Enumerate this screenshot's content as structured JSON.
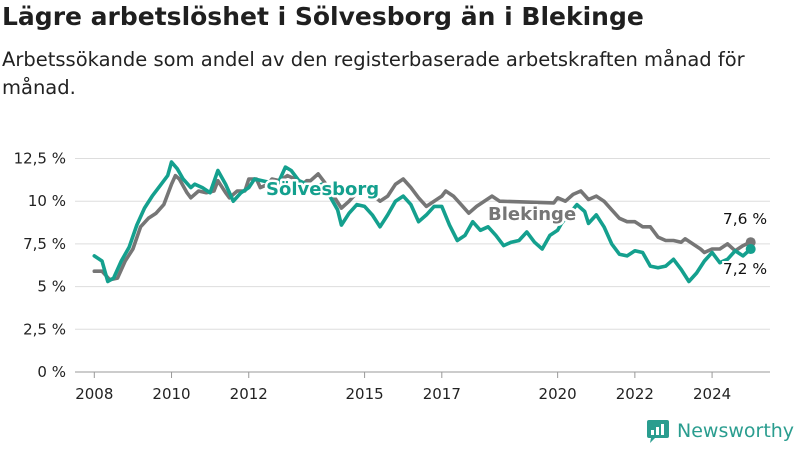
{
  "header": {
    "title": "Lägre arbetslöshet i Sölvesborg än i Blekinge",
    "subtitle": "Arbetssökande som andel av den registerbaserade arbetskraften månad för månad."
  },
  "brand": {
    "name": "Newsworthy",
    "color": "#2a9d8f",
    "icon": "newsworthy-logo-icon"
  },
  "chart_data": {
    "type": "line",
    "title": "Lägre arbetslöshet i Sölvesborg än i Blekinge",
    "subtitle": "Arbetssökande som andel av den registerbaserade arbetskraften månad för månad.",
    "xlabel": "",
    "ylabel": "",
    "xlim": [
      2007.5,
      2025.5
    ],
    "ylim": [
      0,
      13
    ],
    "grid": true,
    "legend": "inline labels",
    "yticks": [
      {
        "v": 0,
        "label": "0 %"
      },
      {
        "v": 2.5,
        "label": "2,5 %"
      },
      {
        "v": 5,
        "label": "5 %"
      },
      {
        "v": 7.5,
        "label": "7,5 %"
      },
      {
        "v": 10,
        "label": "10 %"
      },
      {
        "v": 12.5,
        "label": "12,5 %"
      }
    ],
    "xticks": [
      {
        "v": 2008,
        "label": "2008"
      },
      {
        "v": 2010,
        "label": "2010"
      },
      {
        "v": 2012,
        "label": "2012"
      },
      {
        "v": 2015,
        "label": "2015"
      },
      {
        "v": 2017,
        "label": "2017"
      },
      {
        "v": 2020,
        "label": "2020"
      },
      {
        "v": 2022,
        "label": "2022"
      },
      {
        "v": 2024,
        "label": "2024"
      }
    ],
    "series": [
      {
        "name": "Blekinge",
        "color": "#767676",
        "end_label": "7,6 %",
        "points": [
          [
            2008.0,
            5.9
          ],
          [
            2008.2,
            5.9
          ],
          [
            2008.4,
            5.4
          ],
          [
            2008.6,
            5.5
          ],
          [
            2008.8,
            6.5
          ],
          [
            2009.0,
            7.2
          ],
          [
            2009.2,
            8.5
          ],
          [
            2009.4,
            9.0
          ],
          [
            2009.6,
            9.3
          ],
          [
            2009.8,
            9.8
          ],
          [
            2010.0,
            11.0
          ],
          [
            2010.1,
            11.5
          ],
          [
            2010.2,
            11.3
          ],
          [
            2010.4,
            10.5
          ],
          [
            2010.5,
            10.2
          ],
          [
            2010.7,
            10.6
          ],
          [
            2010.9,
            10.5
          ],
          [
            2011.1,
            10.6
          ],
          [
            2011.2,
            11.2
          ],
          [
            2011.4,
            10.5
          ],
          [
            2011.5,
            10.2
          ],
          [
            2011.7,
            10.6
          ],
          [
            2011.9,
            10.6
          ],
          [
            2012.0,
            11.3
          ],
          [
            2012.2,
            11.3
          ],
          [
            2012.3,
            10.8
          ],
          [
            2012.5,
            11.0
          ],
          [
            2012.6,
            11.3
          ],
          [
            2012.8,
            11.2
          ],
          [
            2013.0,
            11.5
          ],
          [
            2013.2,
            11.3
          ],
          [
            2013.4,
            11.0
          ],
          [
            2013.5,
            11.2
          ],
          [
            2013.6,
            11.2
          ],
          [
            2013.8,
            11.6
          ],
          [
            2014.0,
            11.0
          ],
          [
            2014.2,
            10.3
          ],
          [
            2014.4,
            9.6
          ],
          [
            2014.6,
            10.0
          ],
          [
            2014.8,
            10.5
          ],
          [
            2015.0,
            10.8
          ],
          [
            2015.2,
            10.4
          ],
          [
            2015.4,
            10.0
          ],
          [
            2015.6,
            10.3
          ],
          [
            2015.8,
            11.0
          ],
          [
            2016.0,
            11.3
          ],
          [
            2016.2,
            10.8
          ],
          [
            2016.4,
            10.2
          ],
          [
            2016.6,
            9.7
          ],
          [
            2016.8,
            10.0
          ],
          [
            2017.0,
            10.3
          ],
          [
            2017.1,
            10.6
          ],
          [
            2017.3,
            10.3
          ],
          [
            2017.5,
            9.8
          ],
          [
            2017.7,
            9.3
          ],
          [
            2017.9,
            9.7
          ],
          [
            2018.1,
            10.0
          ],
          [
            2018.3,
            10.3
          ],
          [
            2018.5,
            10.0
          ],
          [
            2019.9,
            9.9
          ],
          [
            2020.0,
            10.2
          ],
          [
            2020.2,
            10.0
          ],
          [
            2020.4,
            10.4
          ],
          [
            2020.6,
            10.6
          ],
          [
            2020.8,
            10.1
          ],
          [
            2021.0,
            10.3
          ],
          [
            2021.2,
            10.0
          ],
          [
            2021.4,
            9.5
          ],
          [
            2021.6,
            9.0
          ],
          [
            2021.8,
            8.8
          ],
          [
            2022.0,
            8.8
          ],
          [
            2022.2,
            8.5
          ],
          [
            2022.4,
            8.5
          ],
          [
            2022.6,
            7.9
          ],
          [
            2022.8,
            7.7
          ],
          [
            2023.0,
            7.7
          ],
          [
            2023.2,
            7.6
          ],
          [
            2023.3,
            7.8
          ],
          [
            2023.5,
            7.5
          ],
          [
            2023.7,
            7.2
          ],
          [
            2023.8,
            7.0
          ],
          [
            2024.0,
            7.2
          ],
          [
            2024.2,
            7.2
          ],
          [
            2024.4,
            7.5
          ],
          [
            2024.6,
            7.1
          ],
          [
            2024.8,
            7.4
          ],
          [
            2025.0,
            7.6
          ]
        ]
      },
      {
        "name": "Sölvesborg",
        "color": "#14a08e",
        "end_label": "7,2 %",
        "points": [
          [
            2008.0,
            6.8
          ],
          [
            2008.2,
            6.5
          ],
          [
            2008.35,
            5.3
          ],
          [
            2008.5,
            5.5
          ],
          [
            2008.7,
            6.5
          ],
          [
            2008.9,
            7.3
          ],
          [
            2009.1,
            8.6
          ],
          [
            2009.3,
            9.6
          ],
          [
            2009.5,
            10.3
          ],
          [
            2009.7,
            10.9
          ],
          [
            2009.9,
            11.5
          ],
          [
            2010.0,
            12.3
          ],
          [
            2010.15,
            11.9
          ],
          [
            2010.3,
            11.3
          ],
          [
            2010.5,
            10.8
          ],
          [
            2010.6,
            11.0
          ],
          [
            2010.8,
            10.8
          ],
          [
            2011.0,
            10.5
          ],
          [
            2011.2,
            11.8
          ],
          [
            2011.4,
            11.0
          ],
          [
            2011.6,
            10.0
          ],
          [
            2011.8,
            10.5
          ],
          [
            2012.0,
            10.8
          ],
          [
            2012.15,
            11.3
          ],
          [
            2012.75,
            11.0
          ],
          [
            2012.95,
            12.0
          ],
          [
            2013.1,
            11.8
          ],
          [
            2013.3,
            11.2
          ],
          [
            2013.5,
            11.0
          ],
          [
            2013.7,
            10.8
          ],
          [
            2013.9,
            11.0
          ],
          [
            2014.1,
            10.3
          ],
          [
            2014.3,
            9.5
          ],
          [
            2014.4,
            8.6
          ],
          [
            2014.6,
            9.3
          ],
          [
            2014.8,
            9.8
          ],
          [
            2015.0,
            9.7
          ],
          [
            2015.2,
            9.2
          ],
          [
            2015.4,
            8.5
          ],
          [
            2015.6,
            9.2
          ],
          [
            2015.8,
            10.0
          ],
          [
            2016.0,
            10.3
          ],
          [
            2016.2,
            9.8
          ],
          [
            2016.4,
            8.8
          ],
          [
            2016.6,
            9.2
          ],
          [
            2016.8,
            9.7
          ],
          [
            2017.0,
            9.7
          ],
          [
            2017.2,
            8.6
          ],
          [
            2017.4,
            7.7
          ],
          [
            2017.6,
            8.0
          ],
          [
            2017.8,
            8.8
          ],
          [
            2018.0,
            8.3
          ],
          [
            2018.2,
            8.5
          ],
          [
            2018.4,
            8.0
          ],
          [
            2018.6,
            7.4
          ],
          [
            2018.8,
            7.6
          ],
          [
            2019.0,
            7.7
          ],
          [
            2019.2,
            8.2
          ],
          [
            2019.4,
            7.6
          ],
          [
            2019.6,
            7.2
          ],
          [
            2019.8,
            8.0
          ],
          [
            2020.0,
            8.3
          ],
          [
            2020.1,
            8.7
          ],
          [
            2020.5,
            9.8
          ],
          [
            2020.7,
            9.4
          ],
          [
            2020.8,
            8.7
          ],
          [
            2021.0,
            9.2
          ],
          [
            2021.2,
            8.5
          ],
          [
            2021.4,
            7.5
          ],
          [
            2021.6,
            6.9
          ],
          [
            2021.8,
            6.8
          ],
          [
            2022.0,
            7.1
          ],
          [
            2022.2,
            7.0
          ],
          [
            2022.4,
            6.2
          ],
          [
            2022.6,
            6.1
          ],
          [
            2022.8,
            6.2
          ],
          [
            2023.0,
            6.6
          ],
          [
            2023.2,
            6.0
          ],
          [
            2023.4,
            5.3
          ],
          [
            2023.6,
            5.8
          ],
          [
            2023.8,
            6.5
          ],
          [
            2024.0,
            7.0
          ],
          [
            2024.2,
            6.4
          ],
          [
            2024.4,
            6.6
          ],
          [
            2024.6,
            7.1
          ],
          [
            2024.8,
            6.8
          ],
          [
            2025.0,
            7.2
          ]
        ]
      }
    ]
  }
}
